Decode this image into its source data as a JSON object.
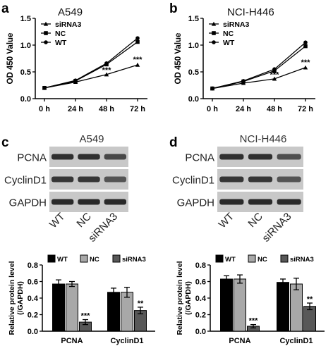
{
  "panels": [
    {
      "letter": "a",
      "kind": "line",
      "chart": 0
    },
    {
      "letter": "b",
      "kind": "line",
      "chart": 1
    },
    {
      "letter": "c",
      "kind": "blot",
      "blot": 0
    },
    {
      "letter": "d",
      "kind": "blot",
      "blot": 1
    }
  ],
  "chart_data": [
    {
      "type": "line",
      "title": "A549",
      "ylabel": "OD 450 Value",
      "xlabel": "",
      "categories": [
        "0 h",
        "24 h",
        "48 h",
        "72 h"
      ],
      "ylim": [
        0,
        1.5
      ],
      "yticks": [
        0.0,
        0.5,
        1.0,
        1.5
      ],
      "ytick_labels": [
        "0.0",
        "0.5",
        "1.0",
        "1.5"
      ],
      "series": [
        {
          "name": "siRNA3",
          "marker": "triangle",
          "values": [
            0.2,
            0.31,
            0.45,
            0.63
          ]
        },
        {
          "name": "NC",
          "marker": "square",
          "values": [
            0.2,
            0.33,
            0.64,
            1.06
          ]
        },
        {
          "name": "WT",
          "marker": "circle",
          "values": [
            0.2,
            0.34,
            0.66,
            1.13
          ]
        }
      ],
      "annotations": [
        {
          "text": "***",
          "x": "48 h",
          "y": 0.51
        },
        {
          "text": "***",
          "x": "72 h",
          "y": 0.71
        }
      ],
      "legend_position": "top-left",
      "grid": false
    },
    {
      "type": "line",
      "title": "NCI-H446",
      "ylabel": "OD 450 Value",
      "xlabel": "",
      "categories": [
        "0 h",
        "24 h",
        "48 h",
        "72 h"
      ],
      "ylim": [
        0,
        1.5
      ],
      "yticks": [
        0.0,
        0.5,
        1.0,
        1.5
      ],
      "ytick_labels": [
        "0.0",
        "0.5",
        "1.0",
        "1.5"
      ],
      "series": [
        {
          "name": "siRNA3",
          "marker": "triangle",
          "values": [
            0.19,
            0.29,
            0.37,
            0.58
          ]
        },
        {
          "name": "NC",
          "marker": "square",
          "values": [
            0.19,
            0.32,
            0.52,
            0.98
          ]
        },
        {
          "name": "WT",
          "marker": "circle",
          "values": [
            0.19,
            0.33,
            0.55,
            1.05
          ]
        }
      ],
      "annotations": [
        {
          "text": "***",
          "x": "48 h",
          "y": 0.43
        },
        {
          "text": "***",
          "x": "72 h",
          "y": 0.66
        }
      ],
      "legend_position": "top-left",
      "grid": false
    },
    {
      "type": "bar",
      "title": "",
      "ylabel": "Relative protein level\n(/GAPDH)",
      "ylabel_lines": [
        "Relative protein level",
        "(/GAPDH)"
      ],
      "categories": [
        "PCNA",
        "CyclinD1"
      ],
      "ylim": [
        0,
        0.8
      ],
      "yticks": [
        0.0,
        0.2,
        0.4,
        0.6,
        0.8
      ],
      "ytick_labels": [
        "0.0",
        "0.2",
        "0.4",
        "0.6",
        "0.8"
      ],
      "series": [
        {
          "name": "WT",
          "color": "#000000",
          "values": [
            0.57,
            0.47
          ],
          "errors": [
            0.05,
            0.05
          ]
        },
        {
          "name": "NC",
          "color": "#a8a8a8",
          "values": [
            0.57,
            0.47
          ],
          "errors": [
            0.03,
            0.06
          ]
        },
        {
          "name": "siRNA3",
          "color": "#585858",
          "values": [
            0.11,
            0.25
          ],
          "errors": [
            0.03,
            0.04
          ]
        }
      ],
      "annotations": [
        {
          "text": "***",
          "category": "PCNA",
          "series": "siRNA3"
        },
        {
          "text": "**",
          "category": "CyclinD1",
          "series": "siRNA3"
        }
      ],
      "legend_position": "top"
    },
    {
      "type": "bar",
      "title": "",
      "ylabel": "Relative protein level\n(/GAPDH)",
      "ylabel_lines": [
        "Relative protein level",
        "(/GAPDH)"
      ],
      "categories": [
        "PCNA",
        "CyclinD1"
      ],
      "ylim": [
        0,
        0.8
      ],
      "yticks": [
        0.0,
        0.2,
        0.4,
        0.6,
        0.8
      ],
      "ytick_labels": [
        "0.0",
        "0.2",
        "0.4",
        "0.6",
        "0.8"
      ],
      "series": [
        {
          "name": "WT",
          "color": "#000000",
          "values": [
            0.63,
            0.59
          ],
          "errors": [
            0.04,
            0.04
          ]
        },
        {
          "name": "NC",
          "color": "#a8a8a8",
          "values": [
            0.63,
            0.57
          ],
          "errors": [
            0.05,
            0.07
          ]
        },
        {
          "name": "siRNA3",
          "color": "#585858",
          "values": [
            0.06,
            0.3
          ],
          "errors": [
            0.02,
            0.04
          ]
        }
      ],
      "annotations": [
        {
          "text": "***",
          "category": "PCNA",
          "series": "siRNA3"
        },
        {
          "text": "**",
          "category": "CyclinD1",
          "series": "siRNA3"
        }
      ],
      "legend_position": "top"
    }
  ],
  "blots": [
    {
      "title": "A549",
      "rows": [
        "PCNA",
        "CyclinD1",
        "GAPDH"
      ],
      "lanes": [
        "WT",
        "NC",
        "siRNA3"
      ],
      "band_intensity": [
        [
          0.85,
          0.85,
          0.65
        ],
        [
          0.8,
          0.8,
          0.55
        ],
        [
          0.9,
          0.9,
          0.9
        ]
      ],
      "quant_chart": 2
    },
    {
      "title": "NCI-H446",
      "rows": [
        "PCNA",
        "CyclinD1",
        "GAPDH"
      ],
      "lanes": [
        "WT",
        "NC",
        "siRNA3"
      ],
      "band_intensity": [
        [
          0.85,
          0.85,
          0.6
        ],
        [
          0.8,
          0.8,
          0.55
        ],
        [
          0.9,
          0.9,
          0.9
        ]
      ],
      "quant_chart": 3
    }
  ]
}
